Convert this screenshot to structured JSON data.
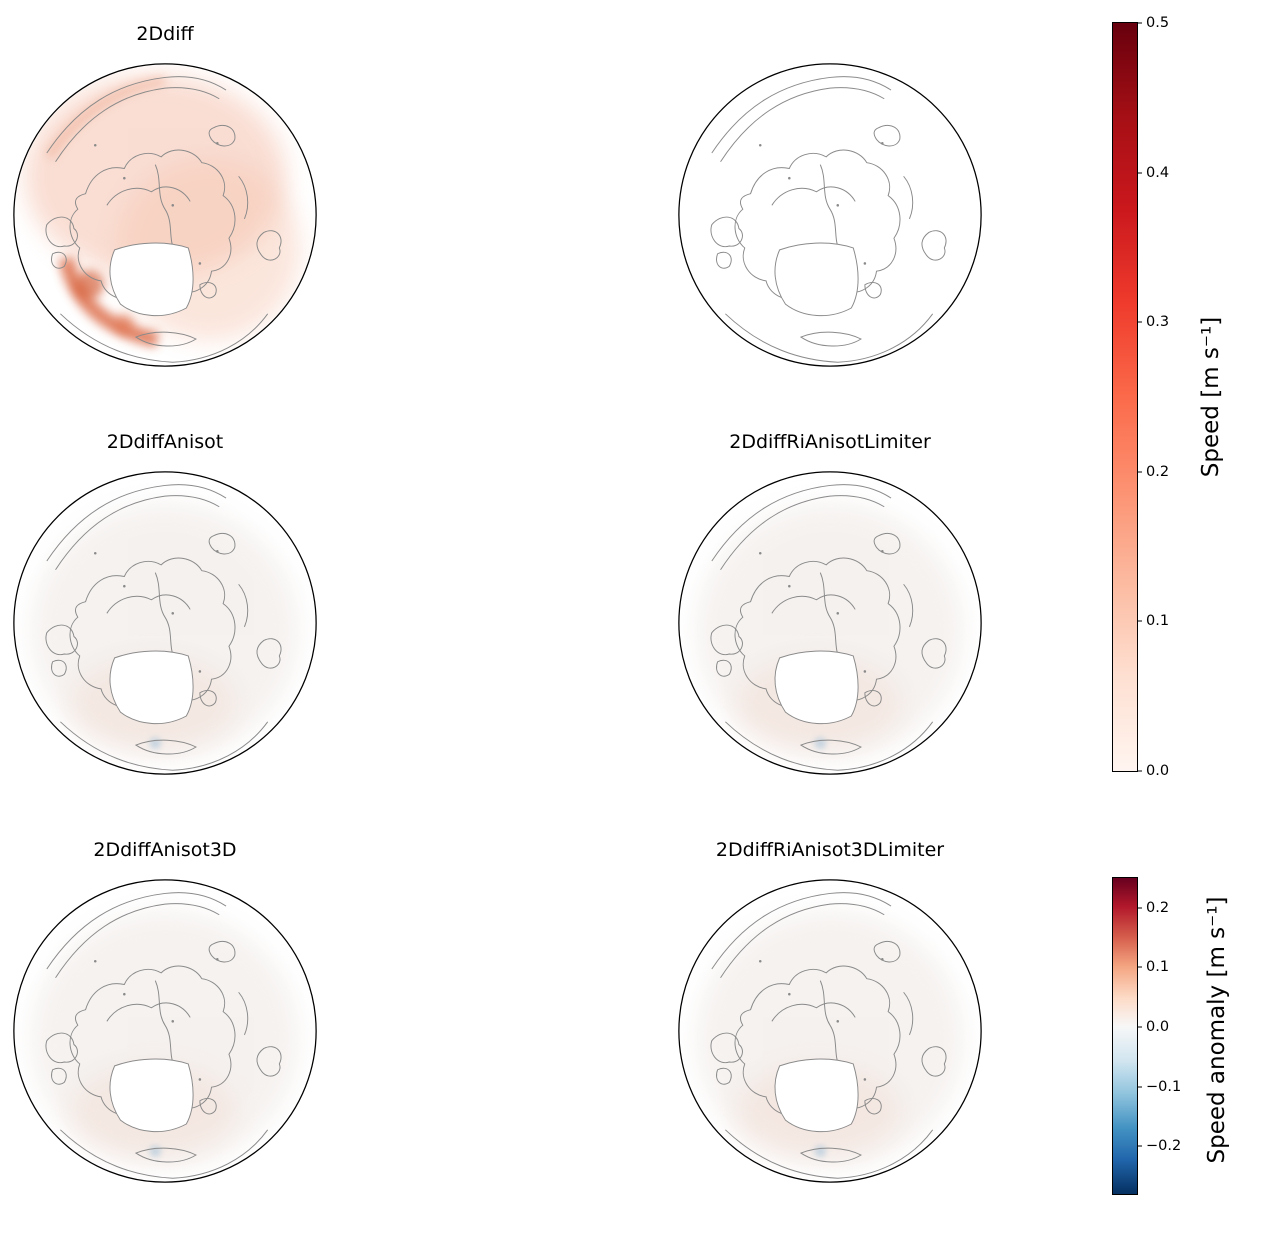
{
  "figure": {
    "background": "#ffffff",
    "contour_color": "#8a8a8a",
    "circle_outline_color": "#000000"
  },
  "panels": [
    {
      "title": "2Ddiff",
      "shading": "strong"
    },
    {
      "title": "",
      "shading": "none"
    },
    {
      "title": "2DdiffAnisot",
      "shading": "faint"
    },
    {
      "title": "2DdiffRiAnisotLimiter",
      "shading": "faint"
    },
    {
      "title": "2DdiffAnisot3D",
      "shading": "faint"
    },
    {
      "title": "2DdiffRiAnisot3DLimiter",
      "shading": "faint"
    }
  ],
  "colorbars": [
    {
      "label": "Speed [m s⁻¹]",
      "tick_labels": [
        "0.5",
        "0.4",
        "0.3",
        "0.2",
        "0.1",
        "0.0"
      ],
      "tick_positions_pct": [
        0,
        20,
        40,
        60,
        80,
        100
      ],
      "range": [
        0.0,
        0.5
      ],
      "colormap": "Reds"
    },
    {
      "label": "Speed anomaly [m s⁻¹]",
      "tick_labels": [
        "0.2",
        "0.1",
        "0.0",
        "−0.1",
        "−0.2"
      ],
      "tick_positions_pct": [
        9.4,
        28.3,
        47.2,
        66.0,
        84.9
      ],
      "range": [
        -0.28,
        0.25
      ],
      "colormap": "RdBu_r"
    }
  ],
  "chart_data": {
    "type": "heatmap",
    "subtype": "north-polar-stereographic map grid",
    "grid": {
      "rows": 3,
      "cols": 2
    },
    "panels": [
      {
        "row": 0,
        "col": 0,
        "title": "2Ddiff",
        "colorbar": "Speed [m s⁻¹]",
        "appearance": "light-to-moderate red speed shading over most of the Arctic basin, strongest band along lower-left coastline"
      },
      {
        "row": 0,
        "col": 1,
        "title": "",
        "colorbar": "Speed anomaly [m s⁻¹]",
        "appearance": "white, contour outlines only, near-zero values"
      },
      {
        "row": 1,
        "col": 0,
        "title": "2DdiffAnisot",
        "colorbar": "Speed anomaly [m s⁻¹]",
        "appearance": "very faint near-zero anomaly, slight warm tint, tiny blue speck near bottom"
      },
      {
        "row": 1,
        "col": 1,
        "title": "2DdiffRiAnisotLimiter",
        "colorbar": "Speed anomaly [m s⁻¹]",
        "appearance": "very faint near-zero anomaly, slight warm tint, tiny blue speck near bottom"
      },
      {
        "row": 2,
        "col": 0,
        "title": "2DdiffAnisot3D",
        "colorbar": "Speed anomaly [m s⁻¹]",
        "appearance": "very faint near-zero anomaly, slight warm tint"
      },
      {
        "row": 2,
        "col": 1,
        "title": "2DdiffRiAnisot3DLimiter",
        "colorbar": "Speed anomaly [m s⁻¹]",
        "appearance": "very faint near-zero anomaly, slight warm tint"
      }
    ],
    "colorbars": [
      {
        "label": "Speed [m s⁻¹]",
        "ticks": [
          0.0,
          0.1,
          0.2,
          0.3,
          0.4,
          0.5
        ],
        "range": [
          0.0,
          0.5
        ],
        "colormap": "Reds",
        "orientation": "vertical",
        "side": "right"
      },
      {
        "label": "Speed anomaly [m s⁻¹]",
        "ticks": [
          -0.2,
          -0.1,
          0.0,
          0.1,
          0.2
        ],
        "range": [
          -0.28,
          0.25
        ],
        "colormap": "RdBu_r",
        "orientation": "vertical",
        "side": "right"
      }
    ],
    "projection": "north polar stereographic",
    "notes": "all six circular panels share identical gray coastline/contour outlines; black circle border around each map"
  }
}
